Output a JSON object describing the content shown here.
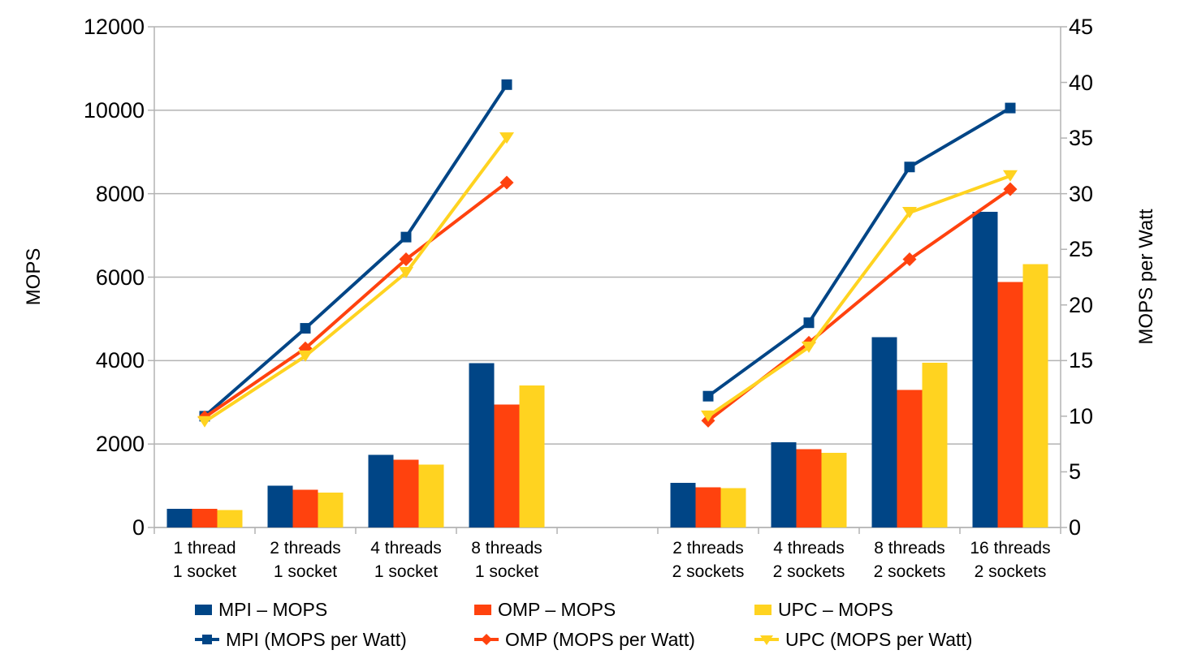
{
  "chart_data": {
    "type": "bar",
    "subtype": "dual-axis bar + line combo",
    "title": "",
    "categories": [
      "1 thread\n1 socket",
      "2 threads\n1 socket",
      "4 threads\n1 socket",
      "8 threads\n1 socket",
      "",
      "2 threads\n2 sockets",
      "4 threads\n2 sockets",
      "8 threads\n2 sockets",
      "16 threads\n2 sockets"
    ],
    "bar_series": [
      {
        "key": "mpi",
        "name": "MPI – MOPS",
        "color": "#004586",
        "axis": "left",
        "values": [
          450,
          1000,
          1740,
          3940,
          null,
          1070,
          2040,
          4560,
          7570
        ]
      },
      {
        "key": "omp",
        "name": "OMP – MOPS",
        "color": "#FF420E",
        "axis": "left",
        "values": [
          450,
          900,
          1620,
          2950,
          null,
          960,
          1880,
          3300,
          5880
        ]
      },
      {
        "key": "upc",
        "name": "UPC – MOPS",
        "color": "#FFD320",
        "axis": "left",
        "values": [
          420,
          840,
          1510,
          3400,
          null,
          940,
          1790,
          3950,
          6310
        ]
      }
    ],
    "line_series": [
      {
        "key": "mpi",
        "name": "MPI (MOPS per Watt)",
        "color": "#004586",
        "marker": "square",
        "axis": "right",
        "values": [
          10.0,
          17.9,
          26.1,
          39.8,
          null,
          11.8,
          18.4,
          32.4,
          37.7
        ]
      },
      {
        "key": "omp",
        "name": "OMP (MOPS per Watt)",
        "color": "#FF420E",
        "marker": "diamond",
        "axis": "right",
        "values": [
          9.9,
          16.1,
          24.1,
          31.0,
          null,
          9.6,
          16.6,
          24.1,
          30.4
        ]
      },
      {
        "key": "upc",
        "name": "UPC (MOPS per Watt)",
        "color": "#FFD320",
        "marker": "triangle-down",
        "axis": "right",
        "values": [
          9.5,
          15.4,
          22.9,
          35.0,
          null,
          10.0,
          16.2,
          28.3,
          31.6
        ]
      }
    ],
    "axes": {
      "left": {
        "title": "MOPS",
        "min": 0,
        "max": 12000,
        "step": 2000,
        "tick_labels": [
          "0",
          "2000",
          "4000",
          "6000",
          "8000",
          "10000",
          "12000"
        ]
      },
      "right": {
        "title": "MOPS per Watt",
        "min": 0,
        "max": 45,
        "step": 5,
        "tick_labels": [
          "0",
          "5",
          "10",
          "15",
          "20",
          "25",
          "30",
          "35",
          "40",
          "45"
        ]
      }
    },
    "grid": "horizontal gridlines at left-axis steps",
    "gridline_color": "#B3B3B3",
    "axis_line_color": "#B3B3B3",
    "background": "#FFFFFF",
    "legend_position": "bottom, two rows (bars row then lines row)"
  }
}
